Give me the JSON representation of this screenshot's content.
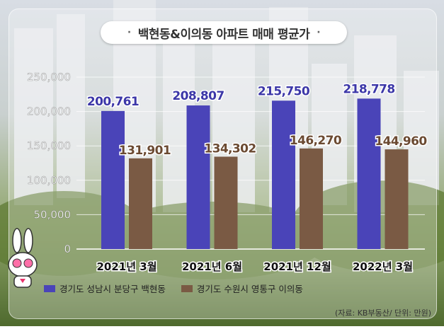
{
  "title": "백현동&이의동 아파트 매매 평균가",
  "source_note": "(자료: KB부동산/ 단위: 만원)",
  "colors": {
    "series1": "#4a44b8",
    "series2": "#7a5a44"
  },
  "chart_data": {
    "type": "bar",
    "categories": [
      "2021년 3월",
      "2021년 6월",
      "2021년 12월",
      "2022년 3월"
    ],
    "series": [
      {
        "name": "경기도 성남시 분당구 백현동",
        "values": [
          200761,
          208807,
          215750,
          218778
        ],
        "labels": [
          "200,761",
          "208,807",
          "215,750",
          "218,778"
        ]
      },
      {
        "name": "경기도 수원시 영통구 이의동",
        "values": [
          131901,
          134302,
          146270,
          144960
        ],
        "labels": [
          "131,901",
          "134,302",
          "146,270",
          "144,960"
        ]
      }
    ],
    "yticks": [
      "0",
      "50,000",
      "100,000",
      "150,000",
      "200,000",
      "250,000"
    ],
    "ylim": [
      0,
      250000
    ],
    "grid": true,
    "legend": "bottom"
  }
}
